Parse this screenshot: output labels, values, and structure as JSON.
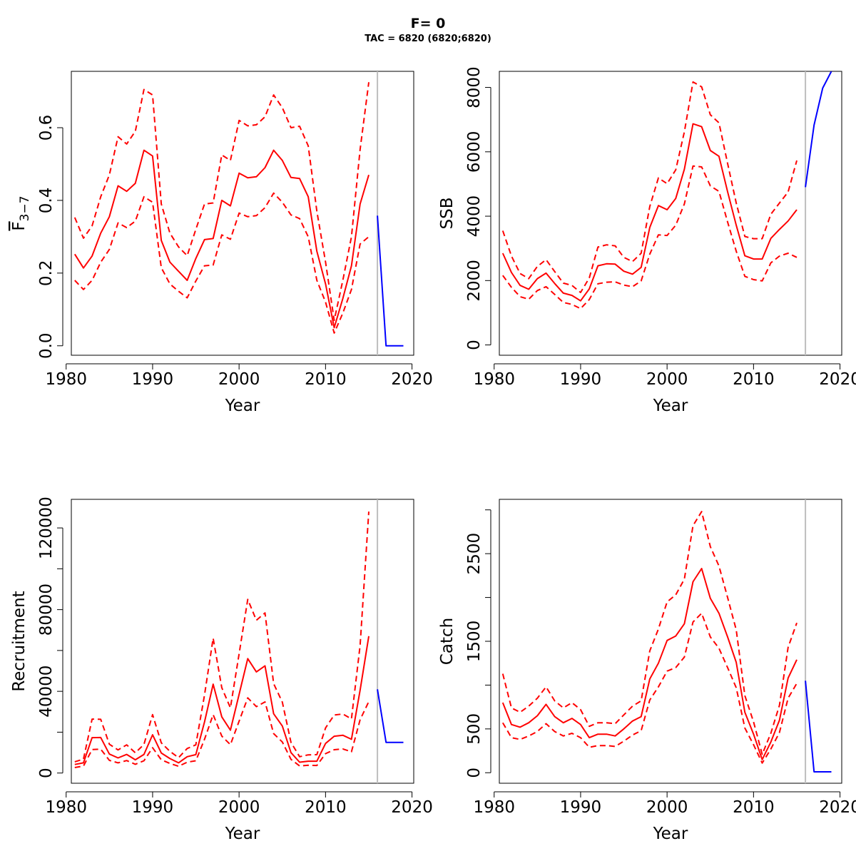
{
  "title": "F= 0",
  "subtitle": "TAC = 6820 (6820;6820)",
  "colors": {
    "historical": "#ff0000",
    "forecast": "#0000ff",
    "divider": "#bebebe"
  },
  "chart_data": [
    {
      "id": "fbar",
      "type": "line",
      "xlabel": "Year",
      "ylabel_main": "F",
      "ylabel_sub": "3−7",
      "ylabel_overline": true,
      "xlim": [
        1980.6,
        2020.2
      ],
      "ylim": [
        -0.026,
        0.755
      ],
      "xticks": [
        1980,
        1990,
        2000,
        2010,
        2020
      ],
      "yticks": [
        0.0,
        0.2,
        0.4,
        0.6
      ],
      "ytick_labels": [
        "0.0",
        "0.2",
        "0.4",
        "0.6"
      ],
      "divider_x": 2016,
      "x": [
        1981,
        1982,
        1983,
        1984,
        1985,
        1986,
        1987,
        1988,
        1989,
        1990,
        1991,
        1992,
        1993,
        1994,
        1995,
        1996,
        1997,
        1998,
        1999,
        2000,
        2001,
        2002,
        2003,
        2004,
        2005,
        2006,
        2007,
        2008,
        2009,
        2010,
        2011,
        2012,
        2013,
        2014,
        2015
      ],
      "series": [
        {
          "role": "estimate",
          "style": "solid",
          "values": [
            0.252,
            0.214,
            0.247,
            0.31,
            0.355,
            0.44,
            0.425,
            0.447,
            0.538,
            0.522,
            0.29,
            0.23,
            0.205,
            0.18,
            0.24,
            0.292,
            0.295,
            0.4,
            0.385,
            0.475,
            0.462,
            0.465,
            0.49,
            0.538,
            0.51,
            0.463,
            0.46,
            0.41,
            0.26,
            0.17,
            0.05,
            0.13,
            0.22,
            0.39,
            0.47
          ]
        },
        {
          "role": "upper",
          "style": "dashed",
          "values": [
            0.353,
            0.296,
            0.33,
            0.41,
            0.47,
            0.575,
            0.555,
            0.59,
            0.705,
            0.69,
            0.39,
            0.31,
            0.272,
            0.248,
            0.32,
            0.39,
            0.393,
            0.525,
            0.51,
            0.62,
            0.605,
            0.608,
            0.63,
            0.69,
            0.655,
            0.6,
            0.604,
            0.55,
            0.37,
            0.23,
            0.07,
            0.18,
            0.3,
            0.54,
            0.725
          ]
        },
        {
          "role": "lower",
          "style": "dashed",
          "values": [
            0.18,
            0.155,
            0.18,
            0.23,
            0.265,
            0.338,
            0.325,
            0.343,
            0.41,
            0.395,
            0.215,
            0.17,
            0.15,
            0.132,
            0.178,
            0.22,
            0.222,
            0.305,
            0.293,
            0.365,
            0.355,
            0.358,
            0.38,
            0.42,
            0.395,
            0.36,
            0.35,
            0.3,
            0.18,
            0.12,
            0.035,
            0.09,
            0.155,
            0.28,
            0.3
          ]
        }
      ],
      "forecast": {
        "x": [
          2016,
          2017,
          2018,
          2019
        ],
        "values": [
          0.358,
          0.0,
          0.0,
          0.0
        ]
      }
    },
    {
      "id": "ssb",
      "type": "line",
      "xlabel": "Year",
      "ylabel_main": "SSB",
      "xlim": [
        1980.6,
        2020.2
      ],
      "ylim": [
        -320,
        8500
      ],
      "xticks": [
        1980,
        1990,
        2000,
        2010,
        2020
      ],
      "yticks": [
        0,
        2000,
        4000,
        6000,
        8000
      ],
      "ytick_labels": [
        "0",
        "2000",
        "4000",
        "6000",
        "8000"
      ],
      "divider_x": 2016,
      "x": [
        1981,
        1982,
        1983,
        1984,
        1985,
        1986,
        1987,
        1988,
        1989,
        1990,
        1991,
        1992,
        1993,
        1994,
        1995,
        1996,
        1997,
        1998,
        1999,
        2000,
        2001,
        2002,
        2003,
        2004,
        2005,
        2006,
        2007,
        2008,
        2009,
        2010,
        2011,
        2012,
        2013,
        2014,
        2015
      ],
      "series": [
        {
          "role": "estimate",
          "style": "solid",
          "values": [
            2850,
            2250,
            1850,
            1730,
            2060,
            2230,
            1910,
            1610,
            1540,
            1370,
            1740,
            2460,
            2520,
            2510,
            2290,
            2200,
            2410,
            3650,
            4330,
            4200,
            4550,
            5460,
            6870,
            6780,
            6040,
            5860,
            4760,
            3720,
            2770,
            2670,
            2670,
            3310,
            3590,
            3850,
            4200
          ]
        },
        {
          "role": "upper",
          "style": "dashed",
          "values": [
            3550,
            2760,
            2220,
            2060,
            2440,
            2650,
            2280,
            1920,
            1850,
            1630,
            2080,
            3040,
            3110,
            3080,
            2720,
            2590,
            2850,
            4300,
            5190,
            5010,
            5440,
            6620,
            8170,
            8020,
            7150,
            6900,
            5640,
            4410,
            3370,
            3300,
            3300,
            4060,
            4410,
            4750,
            5730
          ]
        },
        {
          "role": "lower",
          "style": "dashed",
          "values": [
            2160,
            1790,
            1500,
            1420,
            1690,
            1810,
            1570,
            1320,
            1260,
            1130,
            1410,
            1900,
            1950,
            1960,
            1860,
            1810,
            1990,
            2820,
            3420,
            3400,
            3720,
            4380,
            5560,
            5530,
            4940,
            4770,
            3820,
            2910,
            2130,
            2030,
            1990,
            2550,
            2760,
            2850,
            2720
          ]
        }
      ],
      "forecast": {
        "x": [
          2016,
          2017,
          2018,
          2019
        ],
        "values": [
          4900,
          6830,
          7980,
          8500
        ]
      }
    },
    {
      "id": "recruitment",
      "type": "line",
      "xlabel": "Year",
      "ylabel_main": "Recruitment",
      "xlim": [
        1980.6,
        2020.2
      ],
      "ylim": [
        -5000,
        134000
      ],
      "xticks": [
        1980,
        1990,
        2000,
        2010,
        2020
      ],
      "yticks": [
        0,
        40000,
        80000,
        120000
      ],
      "ytick_labels": [
        "0",
        "40000",
        "80000",
        "120000"
      ],
      "minor_yticks": [
        20000,
        60000,
        100000
      ],
      "divider_x": 2016,
      "x": [
        1981,
        1982,
        1983,
        1984,
        1985,
        1986,
        1987,
        1988,
        1989,
        1990,
        1991,
        1992,
        1993,
        1994,
        1995,
        1996,
        1997,
        1998,
        1999,
        2000,
        2001,
        2002,
        2003,
        2004,
        2005,
        2006,
        2007,
        2008,
        2009,
        2010,
        2011,
        2012,
        2013,
        2014,
        2015
      ],
      "series": [
        {
          "role": "estimate",
          "style": "solid",
          "values": [
            4200,
            5000,
            17300,
            17400,
            9300,
            7400,
            9100,
            6500,
            9100,
            18700,
            9800,
            7100,
            5000,
            8000,
            9000,
            25000,
            43500,
            27500,
            21000,
            38500,
            56000,
            49500,
            52500,
            29000,
            23000,
            10000,
            5300,
            5800,
            5800,
            14500,
            18000,
            18500,
            16500,
            40500,
            67000
          ]
        },
        {
          "role": "upper",
          "style": "dashed",
          "values": [
            5500,
            6800,
            26400,
            26300,
            14100,
            11300,
            13800,
            9900,
            14000,
            28600,
            14800,
            10600,
            7500,
            12000,
            13800,
            38200,
            66000,
            41800,
            31900,
            58400,
            85000,
            74800,
            78400,
            43800,
            34700,
            15000,
            8000,
            8900,
            9000,
            22100,
            28400,
            28900,
            26500,
            62400,
            128000
          ]
        },
        {
          "role": "lower",
          "style": "dashed",
          "values": [
            2700,
            3400,
            11500,
            11700,
            6200,
            5000,
            6100,
            4300,
            6000,
            12400,
            6500,
            4700,
            3300,
            5300,
            6000,
            16500,
            28600,
            18100,
            13900,
            25400,
            36800,
            32500,
            34800,
            19300,
            15200,
            6700,
            3500,
            3800,
            3700,
            9500,
            11400,
            11800,
            10400,
            26100,
            35000
          ]
        }
      ],
      "forecast": {
        "x": [
          2016,
          2017,
          2018,
          2019
        ],
        "values": [
          41000,
          15000,
          15000,
          15000
        ]
      }
    },
    {
      "id": "catch",
      "type": "line",
      "xlabel": "Year",
      "ylabel_main": "Catch",
      "xlim": [
        1980.6,
        2020.2
      ],
      "ylim": [
        -120,
        3120
      ],
      "xticks": [
        1980,
        1990,
        2000,
        2010,
        2020
      ],
      "yticks": [
        0,
        500,
        1500,
        2500
      ],
      "ytick_labels": [
        "0",
        "500",
        "1500",
        "2500"
      ],
      "minor_yticks": [
        1000,
        2000,
        3000
      ],
      "divider_x": 2016,
      "x": [
        1981,
        1982,
        1983,
        1984,
        1985,
        1986,
        1987,
        1988,
        1989,
        1990,
        1991,
        1992,
        1993,
        1994,
        1995,
        1996,
        1997,
        1998,
        1999,
        2000,
        2001,
        2002,
        2003,
        2004,
        2005,
        2006,
        2007,
        2008,
        2009,
        2010,
        2011,
        2012,
        2013,
        2014,
        2015
      ],
      "series": [
        {
          "role": "estimate",
          "style": "solid",
          "values": [
            800,
            550,
            520,
            570,
            650,
            780,
            640,
            570,
            620,
            550,
            400,
            440,
            440,
            420,
            500,
            590,
            640,
            1070,
            1250,
            1510,
            1560,
            1700,
            2180,
            2330,
            1990,
            1820,
            1550,
            1260,
            690,
            440,
            150,
            350,
            600,
            1080,
            1290
          ]
        },
        {
          "role": "upper",
          "style": "dashed",
          "values": [
            1130,
            740,
            690,
            760,
            850,
            980,
            820,
            740,
            800,
            720,
            530,
            570,
            570,
            560,
            660,
            760,
            820,
            1390,
            1640,
            1950,
            2030,
            2210,
            2820,
            2980,
            2580,
            2360,
            2000,
            1630,
            880,
            580,
            210,
            450,
            770,
            1430,
            1710
          ]
        },
        {
          "role": "lower",
          "style": "dashed",
          "values": [
            570,
            400,
            380,
            420,
            470,
            560,
            470,
            420,
            450,
            400,
            290,
            310,
            310,
            300,
            360,
            430,
            480,
            830,
            980,
            1160,
            1200,
            1320,
            1720,
            1820,
            1550,
            1420,
            1200,
            970,
            510,
            320,
            110,
            270,
            460,
            850,
            1020
          ]
        }
      ],
      "forecast": {
        "x": [
          2016,
          2017,
          2018,
          2019
        ],
        "values": [
          1050,
          10,
          10,
          10
        ]
      }
    }
  ]
}
